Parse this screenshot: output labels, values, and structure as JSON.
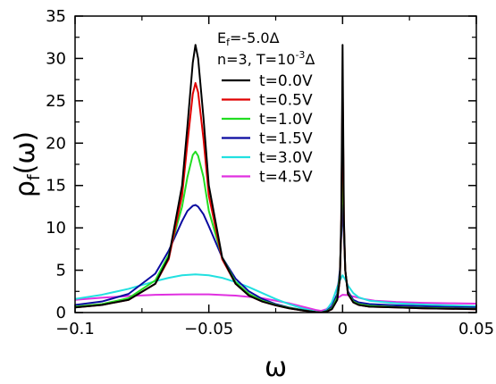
{
  "chart_data": {
    "type": "line",
    "xlabel": "ω",
    "ylabel": "ρ",
    "ylabel_sub": "f",
    "ylabel_suffix": "(ω)",
    "xlim": [
      -0.1,
      0.05
    ],
    "ylim": [
      0,
      35
    ],
    "xticks": [
      -0.1,
      -0.05,
      0,
      0.05
    ],
    "xtick_labels": [
      "−0.1",
      "−0.05",
      "0",
      "0.05"
    ],
    "yticks": [
      0,
      5,
      10,
      15,
      20,
      25,
      30,
      35
    ],
    "ytick_labels": [
      "0",
      "5",
      "10",
      "15",
      "20",
      "25",
      "30",
      "35"
    ],
    "grid": false,
    "legend_position": "top-center",
    "header_lines": [
      {
        "main": "E",
        "sub": "f",
        "rest": "=-5.0Δ"
      },
      {
        "main": "n=3, T=10",
        "sup": "-3",
        "rest": "Δ"
      }
    ],
    "series": [
      {
        "name": "t=0.0V",
        "color": "#000000",
        "x": [
          -0.1,
          -0.09,
          -0.08,
          -0.07,
          -0.065,
          -0.06,
          -0.058,
          -0.056,
          -0.055,
          -0.054,
          -0.052,
          -0.05,
          -0.045,
          -0.04,
          -0.035,
          -0.03,
          -0.025,
          -0.02,
          -0.015,
          -0.01,
          -0.008,
          -0.006,
          -0.004,
          -0.002,
          -0.001,
          -0.0005,
          0,
          0.0005,
          0.001,
          0.002,
          0.004,
          0.006,
          0.01,
          0.02,
          0.03,
          0.04,
          0.05
        ],
        "y": [
          0.6,
          0.9,
          1.5,
          3.4,
          6.5,
          15.0,
          22.0,
          29.5,
          31.6,
          30.0,
          23.0,
          15.0,
          6.5,
          3.4,
          2.0,
          1.3,
          0.85,
          0.5,
          0.25,
          0.05,
          0.0,
          0.1,
          0.4,
          1.5,
          4.0,
          11.0,
          31.6,
          11.0,
          5.0,
          2.2,
          1.2,
          0.9,
          0.7,
          0.6,
          0.5,
          0.45,
          0.4
        ]
      },
      {
        "name": "t=0.5V",
        "color": "#e00000",
        "x": [
          -0.1,
          -0.09,
          -0.08,
          -0.07,
          -0.065,
          -0.06,
          -0.058,
          -0.056,
          -0.055,
          -0.054,
          -0.052,
          -0.05,
          -0.045,
          -0.04,
          -0.035,
          -0.03,
          -0.025,
          -0.02,
          -0.015,
          -0.01,
          -0.008,
          -0.006,
          -0.004,
          -0.002,
          -0.001,
          -0.0005,
          0,
          0.0005,
          0.001,
          0.002,
          0.004,
          0.006,
          0.01,
          0.02,
          0.03,
          0.04,
          0.05
        ],
        "y": [
          0.6,
          0.9,
          1.5,
          3.4,
          6.3,
          13.8,
          20.0,
          25.8,
          27.1,
          26.0,
          20.5,
          13.8,
          6.3,
          3.4,
          2.0,
          1.3,
          0.85,
          0.5,
          0.25,
          0.05,
          0.0,
          0.1,
          0.4,
          1.5,
          4.0,
          10.5,
          27.2,
          10.5,
          5.0,
          2.2,
          1.2,
          0.9,
          0.7,
          0.6,
          0.5,
          0.45,
          0.4
        ]
      },
      {
        "name": "t=1.0V",
        "color": "#22dd22",
        "x": [
          -0.1,
          -0.09,
          -0.08,
          -0.07,
          -0.065,
          -0.06,
          -0.058,
          -0.056,
          -0.055,
          -0.054,
          -0.052,
          -0.05,
          -0.045,
          -0.04,
          -0.035,
          -0.03,
          -0.025,
          -0.02,
          -0.015,
          -0.01,
          -0.008,
          -0.006,
          -0.004,
          -0.002,
          -0.001,
          -0.0005,
          0,
          0.0005,
          0.001,
          0.002,
          0.004,
          0.006,
          0.01,
          0.02,
          0.03,
          0.04,
          0.05
        ],
        "y": [
          0.7,
          1.0,
          1.7,
          3.8,
          6.8,
          12.5,
          16.0,
          18.6,
          19.0,
          18.5,
          16.0,
          12.0,
          6.5,
          3.6,
          2.2,
          1.4,
          0.9,
          0.55,
          0.28,
          0.05,
          0.0,
          0.15,
          0.5,
          1.8,
          4.5,
          10.0,
          19.0,
          10.0,
          5.0,
          2.3,
          1.3,
          1.0,
          0.8,
          0.65,
          0.55,
          0.5,
          0.45
        ]
      },
      {
        "name": "t=1.5V",
        "color": "#0a0aa0",
        "x": [
          -0.1,
          -0.09,
          -0.08,
          -0.07,
          -0.065,
          -0.06,
          -0.058,
          -0.056,
          -0.055,
          -0.054,
          -0.052,
          -0.05,
          -0.045,
          -0.04,
          -0.035,
          -0.03,
          -0.025,
          -0.02,
          -0.015,
          -0.01,
          -0.008,
          -0.006,
          -0.004,
          -0.002,
          -0.001,
          -0.0005,
          0,
          0.0005,
          0.001,
          0.002,
          0.004,
          0.006,
          0.01,
          0.02,
          0.03,
          0.04,
          0.05
        ],
        "y": [
          0.9,
          1.3,
          2.2,
          4.6,
          7.3,
          10.8,
          12.0,
          12.6,
          12.7,
          12.5,
          11.6,
          10.2,
          6.5,
          4.0,
          2.5,
          1.6,
          1.0,
          0.6,
          0.3,
          0.05,
          0.0,
          0.2,
          0.7,
          2.2,
          5.0,
          9.0,
          12.7,
          9.0,
          5.0,
          2.5,
          1.5,
          1.2,
          1.0,
          0.85,
          0.75,
          0.65,
          0.6
        ]
      },
      {
        "name": "t=3.0V",
        "color": "#22e0e0",
        "x": [
          -0.1,
          -0.09,
          -0.08,
          -0.07,
          -0.065,
          -0.06,
          -0.055,
          -0.05,
          -0.045,
          -0.04,
          -0.035,
          -0.03,
          -0.025,
          -0.02,
          -0.015,
          -0.01,
          -0.008,
          -0.006,
          -0.004,
          -0.002,
          -0.001,
          0,
          0.001,
          0.002,
          0.004,
          0.006,
          0.01,
          0.02,
          0.03,
          0.04,
          0.05
        ],
        "y": [
          1.6,
          2.1,
          2.8,
          3.7,
          4.1,
          4.4,
          4.5,
          4.4,
          4.1,
          3.6,
          3.0,
          2.3,
          1.6,
          1.0,
          0.5,
          0.1,
          0.0,
          0.3,
          1.2,
          3.0,
          3.8,
          4.4,
          3.9,
          3.2,
          2.3,
          1.8,
          1.4,
          1.1,
          0.95,
          0.85,
          0.75
        ]
      },
      {
        "name": "t=4.5V",
        "color": "#e030e0",
        "x": [
          -0.1,
          -0.09,
          -0.08,
          -0.07,
          -0.06,
          -0.05,
          -0.04,
          -0.03,
          -0.02,
          -0.015,
          -0.01,
          -0.008,
          -0.006,
          -0.004,
          -0.002,
          0,
          0.002,
          0.004,
          0.008,
          0.012,
          0.02,
          0.03,
          0.04,
          0.05
        ],
        "y": [
          1.5,
          1.75,
          1.95,
          2.1,
          2.15,
          2.15,
          2.0,
          1.7,
          1.1,
          0.7,
          0.3,
          0.2,
          0.4,
          1.0,
          1.7,
          2.1,
          2.05,
          1.9,
          1.6,
          1.4,
          1.25,
          1.15,
          1.1,
          1.05
        ]
      }
    ]
  }
}
